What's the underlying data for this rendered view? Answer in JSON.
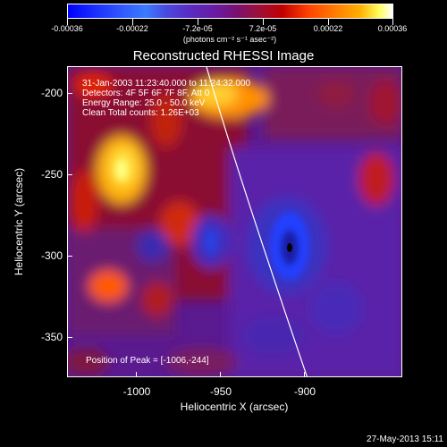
{
  "colorbar": {
    "tick_labels": [
      "-0.00036",
      "-0.00022",
      "-7.2e-05",
      "7.2e-05",
      "0.00022",
      "0.00036"
    ],
    "units": "(photons cm⁻² s⁻¹ asec⁻²)",
    "min": -0.00036,
    "max": 0.00036
  },
  "title": "Reconstructed RHESSI Image",
  "info": {
    "line1": "31-Jan-2003 11:23:40.000 to 11:24:32.000",
    "line2": "Detectors: 4F 5F 6F 7F 8F, Att 0",
    "line3": "Energy Range: 25.0 - 50.0 keV",
    "line4": "Clean     Total counts: 1.26E+03"
  },
  "peak_text": "Position of Peak = [-1006,-244]",
  "axes": {
    "xlabel": "Heliocentric X (arcsec)",
    "ylabel": "Heliocentric Y (arcsec)",
    "xticks": [
      "-1000",
      "-950",
      "-900"
    ],
    "yticks": [
      "-200",
      "-250",
      "-300",
      "-350"
    ]
  },
  "footer": {
    "timestamp": "27-May-2013 15:11"
  }
}
